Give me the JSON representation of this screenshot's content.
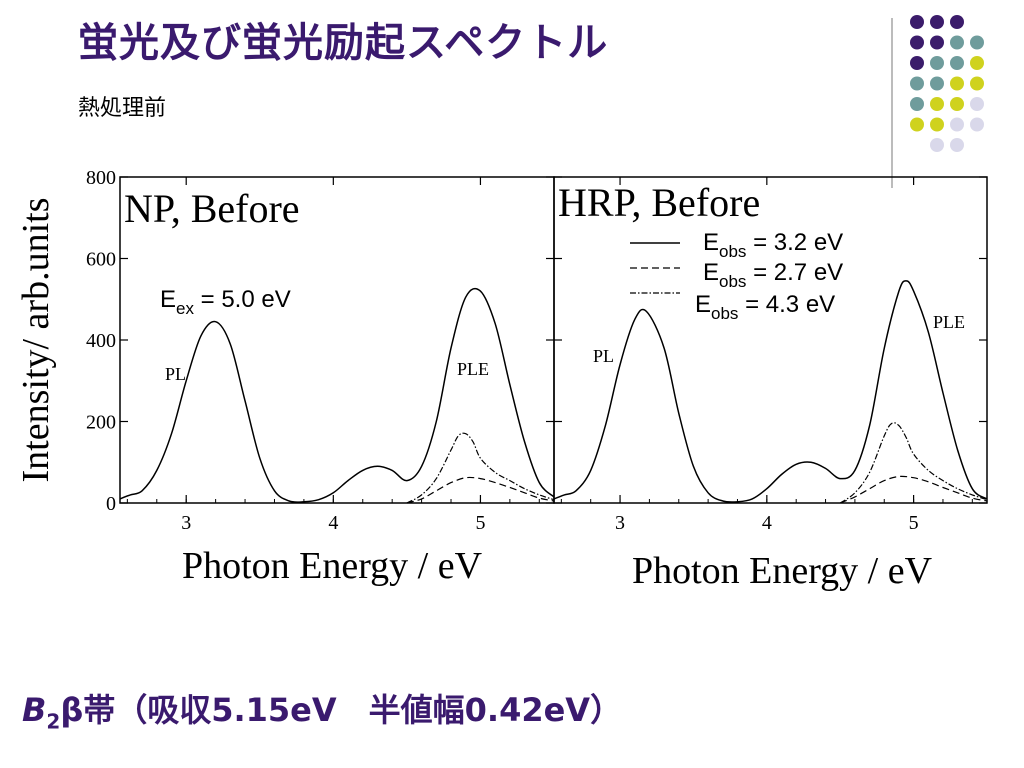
{
  "slide": {
    "title": "蛍光及び蛍光励起スペクトル",
    "subtitle": "熱処理前",
    "footer_prefix": "B",
    "footer_sub": "2",
    "footer_rest": "β帯（吸収5.15eV　半値幅0.42eV）"
  },
  "decor": {
    "dot_colors": {
      "purple": "#3b1c6b",
      "teal": "#6f9c9c",
      "yellow": "#cfd21e",
      "lavender": "#d9d8ea"
    },
    "dot_grid": [
      [
        "purple",
        "purple",
        "purple",
        null
      ],
      [
        "purple",
        "purple",
        "teal",
        "teal"
      ],
      [
        "purple",
        "teal",
        "teal",
        "yellow"
      ],
      [
        "teal",
        "teal",
        "yellow",
        "yellow"
      ],
      [
        "teal",
        "yellow",
        "yellow",
        "lavender"
      ],
      [
        "yellow",
        "yellow",
        "lavender",
        "lavender"
      ],
      [
        null,
        "lavender",
        "lavender",
        null
      ]
    ]
  },
  "chart_data": [
    {
      "type": "line",
      "panel_label": "NP, Before",
      "ylabel": "Intensity/ arb.units",
      "xlabel": "Photon Energy / eV",
      "xlim": [
        2.55,
        5.5
      ],
      "ylim": [
        0,
        800
      ],
      "xticks": [
        3,
        4,
        5
      ],
      "yticks": [
        0,
        200,
        400,
        600,
        800
      ],
      "annotations": {
        "excitation": "E",
        "excitation_sub": "ex",
        "excitation_val": " = 5.0 eV",
        "pl": "PL",
        "ple": "PLE"
      },
      "series": [
        {
          "style": "solid",
          "x": [
            2.55,
            2.62,
            2.7,
            2.8,
            2.9,
            3.0,
            3.1,
            3.2,
            3.3,
            3.4,
            3.5,
            3.6,
            3.7,
            3.8,
            3.9,
            4.0,
            4.1,
            4.2,
            4.3,
            4.4,
            4.5,
            4.6,
            4.7,
            4.8,
            4.9,
            5.0,
            5.1,
            5.2,
            5.3,
            5.4,
            5.5
          ],
          "y": [
            10,
            20,
            30,
            80,
            170,
            300,
            410,
            445,
            390,
            250,
            110,
            30,
            5,
            3,
            8,
            25,
            55,
            80,
            90,
            80,
            55,
            90,
            200,
            380,
            505,
            520,
            440,
            290,
            150,
            50,
            15
          ]
        },
        {
          "style": "dashed",
          "x": [
            4.5,
            4.6,
            4.7,
            4.8,
            4.9,
            5.0,
            5.1,
            5.2,
            5.3,
            5.4,
            5.5
          ],
          "y": [
            0,
            10,
            30,
            50,
            62,
            60,
            50,
            38,
            25,
            12,
            5
          ]
        },
        {
          "style": "dashdot",
          "x": [
            4.5,
            4.6,
            4.7,
            4.8,
            4.85,
            4.9,
            4.95,
            5.0,
            5.1,
            5.2,
            5.3,
            5.4,
            5.5
          ],
          "y": [
            0,
            20,
            60,
            130,
            165,
            170,
            150,
            110,
            75,
            55,
            35,
            20,
            8
          ]
        }
      ]
    },
    {
      "type": "line",
      "panel_label": "HRP, Before",
      "xlabel": "Photon Energy / eV",
      "xlim": [
        2.55,
        5.5
      ],
      "ylim": [
        0,
        800
      ],
      "xticks": [
        3,
        4,
        5
      ],
      "annotations": {
        "pl": "PL",
        "ple": "PLE"
      },
      "legend": [
        {
          "style": "solid",
          "label": "E",
          "sub": "obs",
          "val": " = 3.2 eV"
        },
        {
          "style": "dashed",
          "label": "E",
          "sub": "obs",
          "val": " = 2.7 eV"
        },
        {
          "style": "dashdot",
          "label": "E",
          "sub": "obs",
          "val": " = 4.3 eV"
        }
      ],
      "series": [
        {
          "style": "solid",
          "x": [
            2.55,
            2.62,
            2.7,
            2.8,
            2.9,
            3.0,
            3.1,
            3.18,
            3.3,
            3.4,
            3.5,
            3.6,
            3.7,
            3.8,
            3.9,
            4.0,
            4.1,
            4.2,
            4.3,
            4.4,
            4.5,
            4.6,
            4.7,
            4.8,
            4.9,
            4.95,
            5.0,
            5.1,
            5.2,
            5.3,
            5.4,
            5.5
          ],
          "y": [
            10,
            20,
            30,
            80,
            190,
            340,
            450,
            470,
            380,
            220,
            90,
            25,
            5,
            3,
            10,
            35,
            70,
            95,
            100,
            85,
            60,
            80,
            190,
            380,
            520,
            545,
            520,
            420,
            270,
            130,
            35,
            10
          ]
        },
        {
          "style": "dashed",
          "x": [
            4.5,
            4.6,
            4.7,
            4.8,
            4.9,
            5.0,
            5.1,
            5.2,
            5.3,
            5.4,
            5.5
          ],
          "y": [
            0,
            15,
            35,
            55,
            65,
            62,
            52,
            38,
            25,
            12,
            5
          ]
        },
        {
          "style": "dashdot",
          "x": [
            4.5,
            4.6,
            4.7,
            4.8,
            4.85,
            4.9,
            4.95,
            5.0,
            5.1,
            5.2,
            5.3,
            5.4,
            5.5
          ],
          "y": [
            0,
            25,
            75,
            165,
            195,
            190,
            160,
            120,
            80,
            55,
            35,
            20,
            8
          ]
        }
      ]
    }
  ]
}
